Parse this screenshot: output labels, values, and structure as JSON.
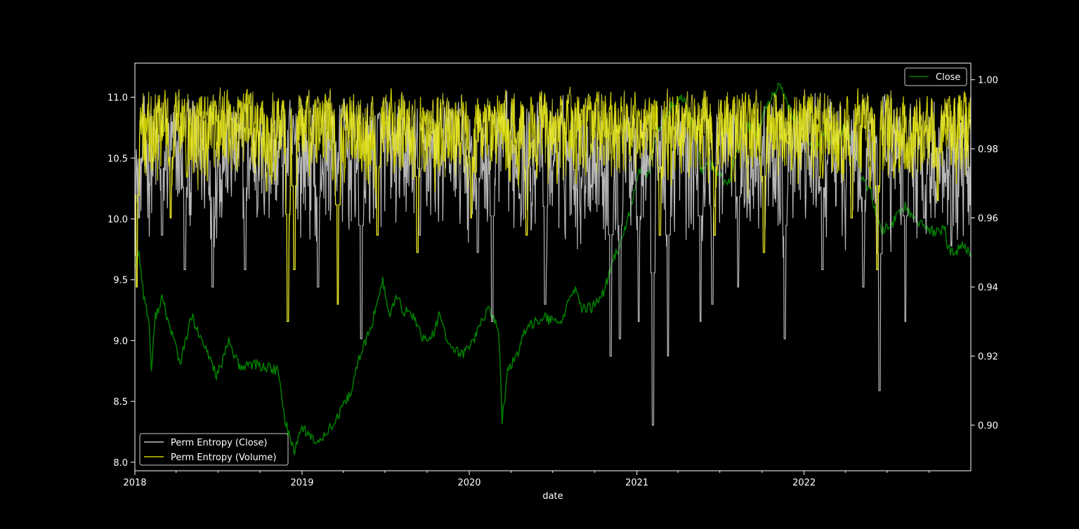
{
  "chart_data": {
    "type": "line",
    "title": "",
    "xlabel": "date",
    "x_ticks": [
      "2018",
      "2019",
      "2020",
      "2021",
      "2022"
    ],
    "x_range": [
      "2018-01-01",
      "2022-12-31"
    ],
    "left_axis": {
      "ylim": [
        7.93,
        11.28
      ],
      "ticks": [
        "8.0",
        "8.5",
        "9.0",
        "9.5",
        "10.0",
        "10.5",
        "11.0"
      ]
    },
    "right_axis": {
      "ylim": [
        0.8868,
        1.0048
      ],
      "ticks": [
        "0.90",
        "0.92",
        "0.94",
        "0.96",
        "0.98",
        "1.00"
      ]
    },
    "legends": [
      {
        "location": "lower-left",
        "entries": [
          "Perm Entropy (Close)",
          "Perm Entropy (Volume)"
        ]
      },
      {
        "location": "upper-right",
        "entries": [
          "Close"
        ]
      }
    ],
    "colors": {
      "close": "#008000",
      "pe_close": "#c0c0c0",
      "pe_volume": "#cccc00",
      "pe_volume_light": "#f0f03a"
    },
    "series": [
      {
        "name": "Close",
        "axis": "left",
        "points": [
          [
            "2018-01-01",
            9.62
          ],
          [
            "2018-01-10",
            9.72
          ],
          [
            "2018-01-20",
            9.38
          ],
          [
            "2018-02-01",
            9.15
          ],
          [
            "2018-02-06",
            8.75
          ],
          [
            "2018-02-15",
            9.2
          ],
          [
            "2018-03-01",
            9.35
          ],
          [
            "2018-03-15",
            9.15
          ],
          [
            "2018-04-01",
            8.95
          ],
          [
            "2018-04-10",
            8.8
          ],
          [
            "2018-04-25",
            9.05
          ],
          [
            "2018-05-05",
            9.2
          ],
          [
            "2018-05-20",
            9.05
          ],
          [
            "2018-06-01",
            8.95
          ],
          [
            "2018-06-15",
            8.85
          ],
          [
            "2018-06-28",
            8.72
          ],
          [
            "2018-07-10",
            8.8
          ],
          [
            "2018-07-25",
            9.0
          ],
          [
            "2018-08-10",
            8.85
          ],
          [
            "2018-08-20",
            8.75
          ],
          [
            "2018-09-05",
            8.82
          ],
          [
            "2018-09-20",
            8.8
          ],
          [
            "2018-10-15",
            8.78
          ],
          [
            "2018-11-10",
            8.75
          ],
          [
            "2018-11-20",
            8.45
          ],
          [
            "2018-12-01",
            8.25
          ],
          [
            "2018-12-15",
            8.1
          ],
          [
            "2019-01-01",
            8.3
          ],
          [
            "2019-01-20",
            8.2
          ],
          [
            "2019-02-05",
            8.15
          ],
          [
            "2019-02-20",
            8.25
          ],
          [
            "2019-03-10",
            8.3
          ],
          [
            "2019-04-01",
            8.45
          ],
          [
            "2019-04-20",
            8.6
          ],
          [
            "2019-05-05",
            8.85
          ],
          [
            "2019-05-20",
            9.0
          ],
          [
            "2019-06-01",
            9.1
          ],
          [
            "2019-06-15",
            9.35
          ],
          [
            "2019-06-26",
            9.5
          ],
          [
            "2019-07-10",
            9.2
          ],
          [
            "2019-07-25",
            9.35
          ],
          [
            "2019-08-10",
            9.25
          ],
          [
            "2019-09-01",
            9.2
          ],
          [
            "2019-09-25",
            9.0
          ],
          [
            "2019-10-15",
            9.05
          ],
          [
            "2019-10-27",
            9.2
          ],
          [
            "2019-11-20",
            8.95
          ],
          [
            "2019-12-15",
            8.88
          ],
          [
            "2020-01-10",
            9.0
          ],
          [
            "2020-02-01",
            9.2
          ],
          [
            "2020-02-15",
            9.25
          ],
          [
            "2020-03-05",
            9.1
          ],
          [
            "2020-03-13",
            8.35
          ],
          [
            "2020-03-25",
            8.75
          ],
          [
            "2020-04-10",
            8.85
          ],
          [
            "2020-04-30",
            9.05
          ],
          [
            "2020-05-20",
            9.15
          ],
          [
            "2020-06-10",
            9.2
          ],
          [
            "2020-07-01",
            9.15
          ],
          [
            "2020-07-20",
            9.15
          ],
          [
            "2020-08-05",
            9.35
          ],
          [
            "2020-08-20",
            9.4
          ],
          [
            "2020-09-05",
            9.25
          ],
          [
            "2020-10-01",
            9.28
          ],
          [
            "2020-10-20",
            9.4
          ],
          [
            "2020-11-10",
            9.65
          ],
          [
            "2020-12-01",
            9.85
          ],
          [
            "2020-12-20",
            10.1
          ],
          [
            "2021-01-10",
            10.45
          ],
          [
            "2021-01-25",
            10.35
          ],
          [
            "2021-02-15",
            10.7
          ],
          [
            "2021-03-10",
            10.9
          ],
          [
            "2021-04-10",
            11.0
          ],
          [
            "2021-04-25",
            10.85
          ],
          [
            "2021-05-12",
            10.65
          ],
          [
            "2021-05-20",
            10.4
          ],
          [
            "2021-06-10",
            10.45
          ],
          [
            "2021-07-01",
            10.35
          ],
          [
            "2021-07-20",
            10.3
          ],
          [
            "2021-08-10",
            10.6
          ],
          [
            "2021-09-01",
            10.75
          ],
          [
            "2021-09-20",
            10.7
          ],
          [
            "2021-10-15",
            10.95
          ],
          [
            "2021-11-10",
            11.1
          ],
          [
            "2021-11-25",
            10.95
          ],
          [
            "2021-12-05",
            10.85
          ],
          [
            "2021-12-30",
            10.75
          ],
          [
            "2022-01-20",
            10.55
          ],
          [
            "2022-02-10",
            10.7
          ],
          [
            "2022-03-05",
            10.65
          ],
          [
            "2022-03-30",
            10.75
          ],
          [
            "2022-04-20",
            10.6
          ],
          [
            "2022-05-10",
            10.3
          ],
          [
            "2022-05-25",
            10.25
          ],
          [
            "2022-06-13",
            9.95
          ],
          [
            "2022-06-20",
            9.9
          ],
          [
            "2022-07-10",
            9.95
          ],
          [
            "2022-08-10",
            10.1
          ],
          [
            "2022-08-25",
            10.0
          ],
          [
            "2022-09-15",
            9.95
          ],
          [
            "2022-10-01",
            9.9
          ],
          [
            "2022-10-25",
            9.9
          ],
          [
            "2022-11-05",
            9.95
          ],
          [
            "2022-11-10",
            9.75
          ],
          [
            "2022-11-25",
            9.72
          ],
          [
            "2022-12-10",
            9.78
          ],
          [
            "2022-12-31",
            9.72
          ]
        ]
      },
      {
        "name": "Perm Entropy (Close)",
        "axis": "right",
        "summary": "dense oscillation mostly between 0.94 and 1.00",
        "typical_range": [
          0.94,
          0.998
        ],
        "dips": [
          [
            "2018-01-10",
            0.96
          ],
          [
            "2018-03-01",
            0.955
          ],
          [
            "2018-04-20",
            0.945
          ],
          [
            "2018-06-20",
            0.94
          ],
          [
            "2018-08-30",
            0.945
          ],
          [
            "2019-02-05",
            0.94
          ],
          [
            "2019-05-10",
            0.925
          ],
          [
            "2019-09-15",
            0.955
          ],
          [
            "2020-01-20",
            0.95
          ],
          [
            "2020-02-20",
            0.93
          ],
          [
            "2020-06-15",
            0.935
          ],
          [
            "2020-11-05",
            0.92
          ],
          [
            "2020-11-25",
            0.925
          ],
          [
            "2021-01-05",
            0.93
          ],
          [
            "2021-02-05",
            0.9
          ],
          [
            "2021-03-10",
            0.92
          ],
          [
            "2021-05-20",
            0.93
          ],
          [
            "2021-06-15",
            0.935
          ],
          [
            "2021-08-10",
            0.94
          ],
          [
            "2021-11-20",
            0.925
          ],
          [
            "2022-02-10",
            0.945
          ],
          [
            "2022-05-10",
            0.94
          ],
          [
            "2022-06-15",
            0.91
          ],
          [
            "2022-08-10",
            0.93
          ],
          [
            "2022-09-20",
            0.96
          ]
        ]
      },
      {
        "name": "Perm Entropy (Volume)",
        "axis": "right",
        "summary": "dense oscillation mostly between 0.96 and 1.00",
        "typical_range": [
          0.962,
          0.999
        ],
        "dips": [
          [
            "2018-01-05",
            0.94
          ],
          [
            "2018-03-20",
            0.96
          ],
          [
            "2018-12-01",
            0.93
          ],
          [
            "2018-12-15",
            0.945
          ],
          [
            "2019-03-20",
            0.935
          ],
          [
            "2019-06-15",
            0.955
          ],
          [
            "2019-09-10",
            0.95
          ],
          [
            "2020-01-05",
            0.96
          ],
          [
            "2020-05-05",
            0.955
          ],
          [
            "2021-02-20",
            0.955
          ],
          [
            "2021-06-20",
            0.955
          ],
          [
            "2021-10-05",
            0.95
          ],
          [
            "2022-04-15",
            0.96
          ],
          [
            "2022-06-10",
            0.945
          ],
          [
            "2022-10-20",
            0.965
          ]
        ]
      }
    ]
  }
}
